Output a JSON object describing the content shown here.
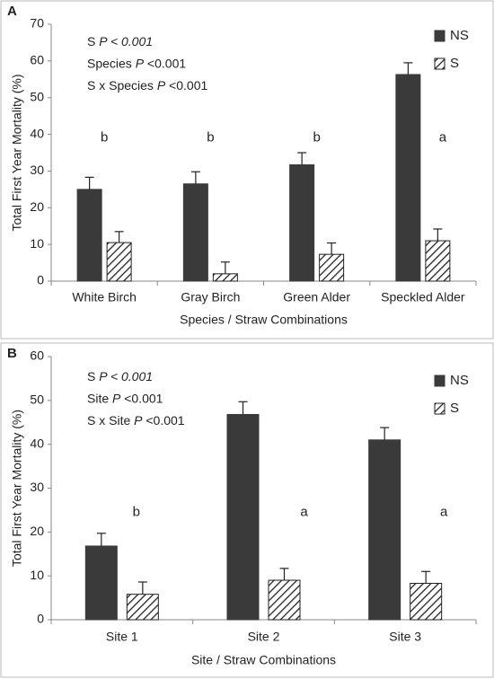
{
  "chart_data": [
    {
      "type": "bar",
      "panel_label": "A",
      "stats": [
        [
          {
            "text": "S "
          },
          {
            "text": "P < 0.001",
            "italic": true
          }
        ],
        [
          {
            "text": "Species "
          },
          {
            "text": "P",
            "italic": true
          },
          {
            "text": " <0.001"
          }
        ],
        [
          {
            "text": "S x Species "
          },
          {
            "text": "P",
            "italic": true
          },
          {
            "text": " <0.001"
          }
        ]
      ],
      "categories": [
        "White Birch",
        "Gray Birch",
        "Green Alder",
        "Speckled Alder"
      ],
      "series": [
        {
          "name": "NS",
          "color": "#3a3a3a",
          "hatch": false,
          "values": [
            25,
            26.5,
            31.7,
            56.3
          ],
          "errors": [
            3.3,
            3.3,
            3.3,
            3.2
          ]
        },
        {
          "name": "S",
          "color": "#ffffff",
          "hatch": true,
          "values": [
            10.5,
            2,
            7.3,
            11
          ],
          "errors": [
            3,
            3.2,
            3.1,
            3.2
          ]
        }
      ],
      "letters": [
        "b",
        "b",
        "b",
        "a"
      ],
      "ylabel": "Total First Year Mortality (%)",
      "xlabel": "Species / Straw Combinations",
      "ylim": [
        0,
        70
      ],
      "yticks": [
        0,
        10,
        20,
        30,
        40,
        50,
        60,
        70
      ]
    },
    {
      "type": "bar",
      "panel_label": "B",
      "stats": [
        [
          {
            "text": "S "
          },
          {
            "text": "P < 0.001",
            "italic": true
          }
        ],
        [
          {
            "text": "Site "
          },
          {
            "text": "P",
            "italic": true
          },
          {
            "text": " <0.001"
          }
        ],
        [
          {
            "text": "S x Site "
          },
          {
            "text": "P",
            "italic": true
          },
          {
            "text": " <0.001"
          }
        ]
      ],
      "categories": [
        "Site 1",
        "Site 2",
        "Site 3"
      ],
      "series": [
        {
          "name": "NS",
          "color": "#3a3a3a",
          "hatch": false,
          "values": [
            16.8,
            46.8,
            41
          ],
          "errors": [
            2.9,
            2.9,
            2.8
          ]
        },
        {
          "name": "S",
          "color": "#ffffff",
          "hatch": true,
          "values": [
            5.8,
            9,
            8.3
          ],
          "errors": [
            2.8,
            2.7,
            2.7
          ]
        }
      ],
      "letters": [
        "b",
        "a",
        "a"
      ],
      "ylabel": "Total First Year Mortality (%)",
      "xlabel": "Site / Straw Combinations",
      "ylim": [
        0,
        60
      ],
      "yticks": [
        0,
        10,
        20,
        30,
        40,
        50,
        60
      ]
    }
  ]
}
